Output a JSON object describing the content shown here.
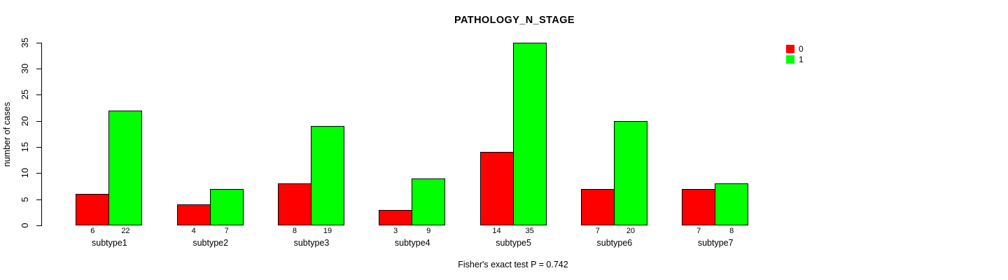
{
  "chart_data": {
    "type": "bar",
    "variant": "grouped",
    "title": "PATHOLOGY_N_STAGE",
    "ylabel": "number of cases",
    "xlabel": "",
    "footnote": "Fisher's exact test P = 0.742",
    "categories": [
      "subtype1",
      "subtype2",
      "subtype3",
      "subtype4",
      "subtype5",
      "subtype6",
      "subtype7"
    ],
    "series": [
      {
        "name": "0",
        "color": "#ff0000",
        "values": [
          6,
          4,
          8,
          3,
          14,
          7,
          7
        ]
      },
      {
        "name": "1",
        "color": "#00ff00",
        "values": [
          22,
          7,
          19,
          9,
          35,
          20,
          8
        ]
      }
    ],
    "bar_value_labels_shown": true,
    "y_ticks": [
      0,
      5,
      10,
      15,
      20,
      25,
      30,
      35
    ],
    "ylim": [
      0,
      35
    ],
    "grid": false,
    "legend_position": "top-right",
    "bar_border_color": "#000000",
    "axis_color": "#000000",
    "background_color": "#ffffff"
  }
}
